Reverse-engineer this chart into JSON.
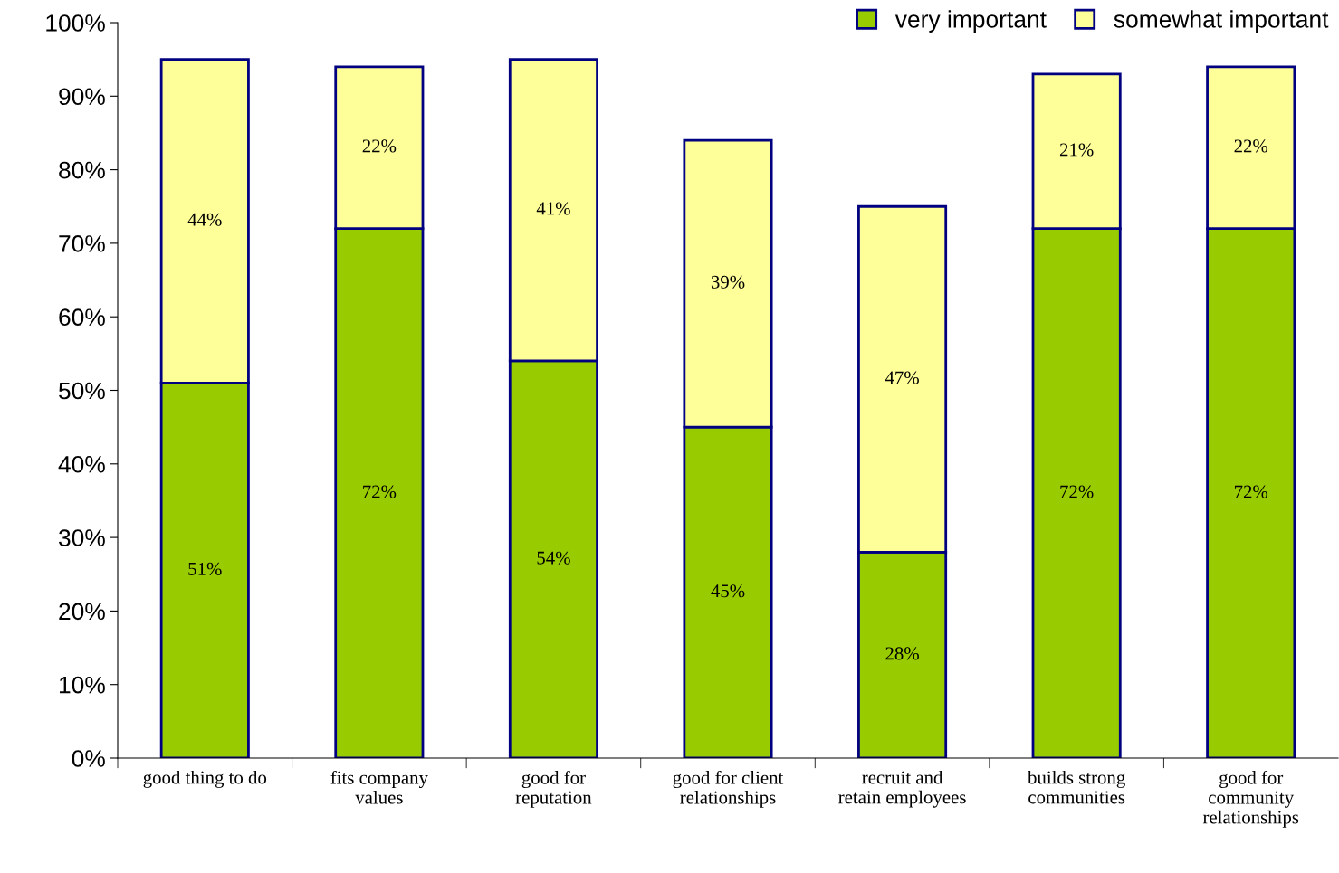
{
  "chart_data": {
    "type": "bar",
    "stacked": true,
    "categories": [
      "good thing to do",
      "fits company values",
      "good for reputation",
      "good for client relationships",
      "recruit and retain employees",
      "builds strong communities",
      "good for community relationships"
    ],
    "series": [
      {
        "name": "very important",
        "color": "#99cc00",
        "values": [
          51,
          72,
          54,
          45,
          28,
          72,
          72
        ],
        "value_labels": [
          "51%",
          "72%",
          "54%",
          "45%",
          "28%",
          "72%",
          "72%"
        ]
      },
      {
        "name": "somewhat important",
        "color": "#ffff99",
        "values": [
          44,
          22,
          41,
          39,
          47,
          21,
          22
        ],
        "value_labels": [
          "44%",
          "22%",
          "41%",
          "39%",
          "47%",
          "21%",
          "22%"
        ]
      }
    ],
    "ylim": [
      0,
      100
    ],
    "yticks": [
      {
        "value": 0,
        "label": "0%"
      },
      {
        "value": 10,
        "label": "10%"
      },
      {
        "value": 20,
        "label": "20%"
      },
      {
        "value": 30,
        "label": "30%"
      },
      {
        "value": 40,
        "label": "40%"
      },
      {
        "value": 50,
        "label": "50%"
      },
      {
        "value": 60,
        "label": "60%"
      },
      {
        "value": 70,
        "label": "70%"
      },
      {
        "value": 80,
        "label": "80%"
      },
      {
        "value": 90,
        "label": "90%"
      },
      {
        "value": 100,
        "label": "100%"
      }
    ],
    "grid": false,
    "legend": "top right"
  }
}
